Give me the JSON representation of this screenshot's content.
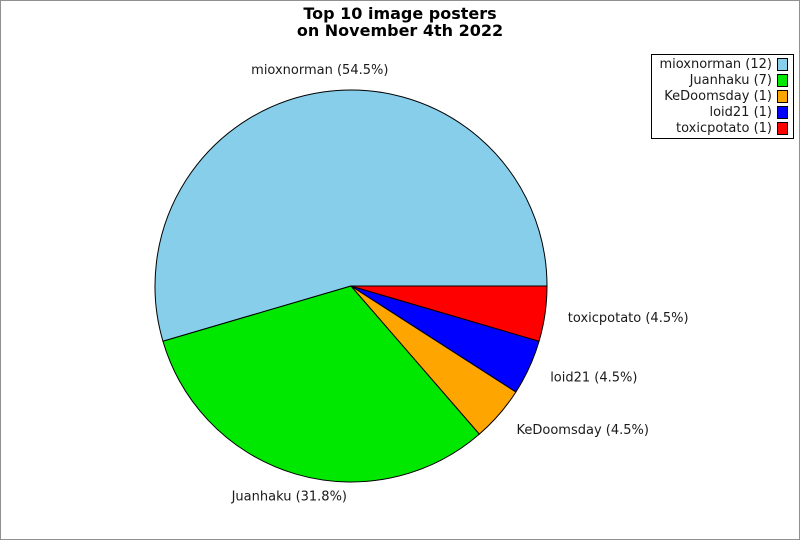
{
  "figure": {
    "title_line1": "Top 10 image posters",
    "title_line2": "on November 4th 2022",
    "background_color": "#ffffff",
    "frame_color": "#909090"
  },
  "chart_data": {
    "type": "pie",
    "title": "Top 10 image posters on November 4th 2022",
    "total_count": 22,
    "start_angle_deg": 0,
    "direction": "counterclockwise",
    "slice_edge_color": "#000000",
    "legend_position": "top-right",
    "slices": [
      {
        "name": "mioxnorman",
        "count": 12,
        "percent": 54.5,
        "color": "#87CEEB",
        "slice_label": "mioxnorman (54.5%)",
        "legend_label": "mioxnorman (12)"
      },
      {
        "name": "Juanhaku",
        "count": 7,
        "percent": 31.8,
        "color": "#00E800",
        "slice_label": "Juanhaku (31.8%)",
        "legend_label": "Juanhaku (7)"
      },
      {
        "name": "KeDoomsday",
        "count": 1,
        "percent": 4.5,
        "color": "#FFA500",
        "slice_label": "KeDoomsday (4.5%)",
        "legend_label": "KeDoomsday (1)"
      },
      {
        "name": "loid21",
        "count": 1,
        "percent": 4.5,
        "color": "#0000FF",
        "slice_label": "loid21 (4.5%)",
        "legend_label": "loid21 (1)"
      },
      {
        "name": "toxicpotato",
        "count": 1,
        "percent": 4.5,
        "color": "#FF0000",
        "slice_label": "toxicpotato (4.5%)",
        "legend_label": "toxicpotato (1)"
      }
    ]
  }
}
